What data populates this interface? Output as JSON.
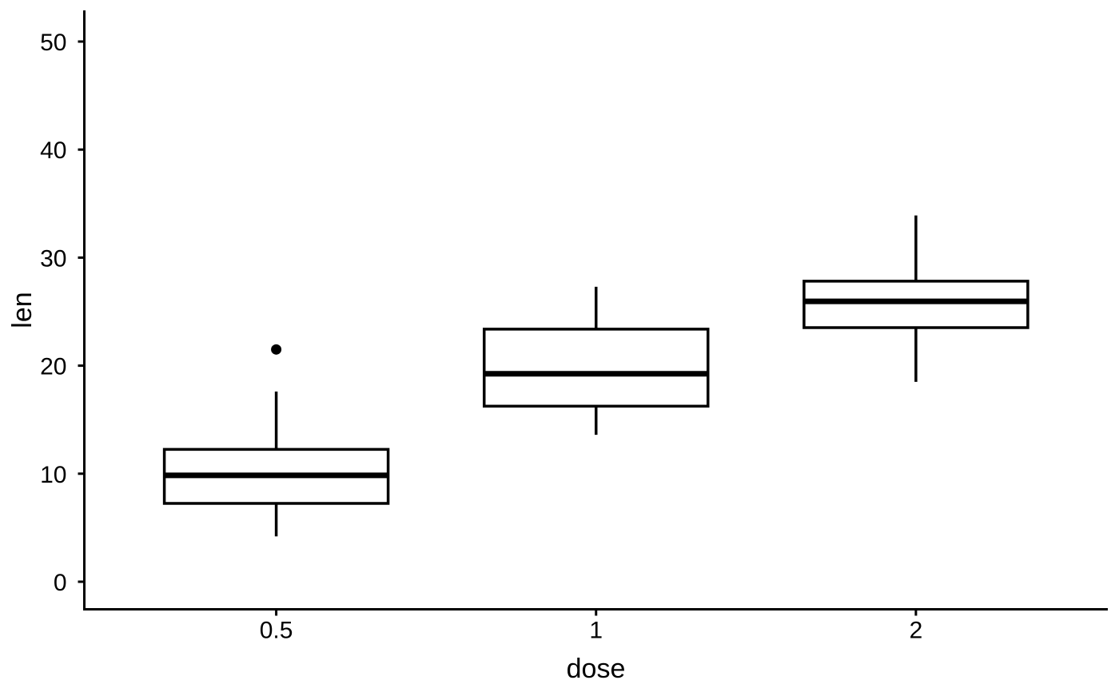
{
  "figure": {
    "background": "#ffffff",
    "ink_color": "#000000",
    "box_fill": "#ffffff"
  },
  "chart_data": {
    "type": "boxplot",
    "title": "",
    "xlabel": "dose",
    "ylabel": "len",
    "categories": [
      "0.5",
      "1",
      "2"
    ],
    "y_ticks": [
      0,
      10,
      20,
      30,
      40,
      50
    ],
    "ylim": [
      0,
      50
    ],
    "grid": "off",
    "legend": "none",
    "series": [
      {
        "category": "0.5",
        "whisker_low": 4.2,
        "q1": 7.25,
        "median": 9.85,
        "q3": 12.25,
        "whisker_high": 17.6,
        "outliers": [
          21.5
        ]
      },
      {
        "category": "1",
        "whisker_low": 13.6,
        "q1": 16.25,
        "median": 19.25,
        "q3": 23.38,
        "whisker_high": 27.3,
        "outliers": []
      },
      {
        "category": "2",
        "whisker_low": 18.5,
        "q1": 23.52,
        "median": 25.95,
        "q3": 27.82,
        "whisker_high": 33.9,
        "outliers": []
      }
    ]
  }
}
